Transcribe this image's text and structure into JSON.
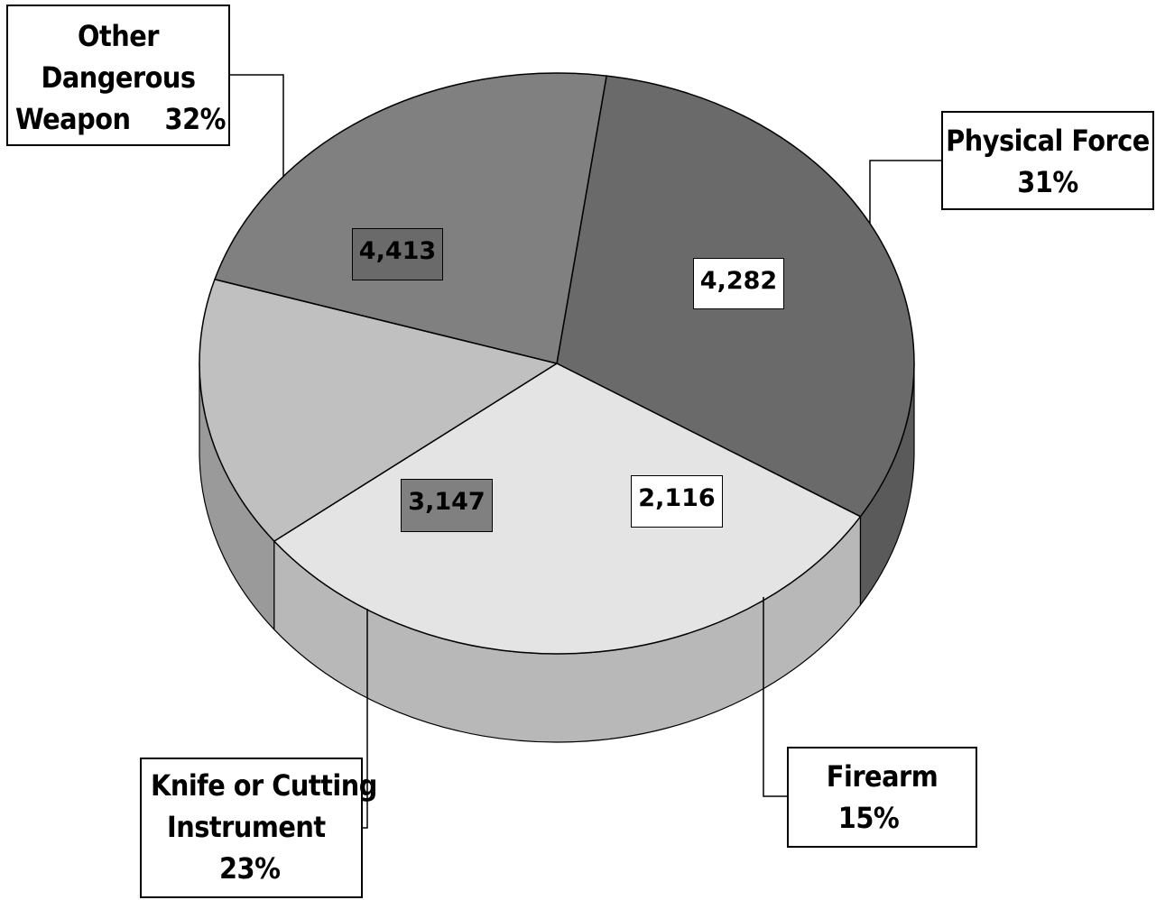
{
  "chart_data": {
    "type": "pie",
    "title": "",
    "slices": [
      {
        "label_lines": [
          "Other",
          "Dangerous",
          "Weapon    32%"
        ],
        "value": 4413,
        "value_label": "4,413",
        "percent": 32,
        "color": "#6a6a6a",
        "side_color": "#5a5a5a"
      },
      {
        "label_lines": [
          "Physical Force",
          "31%"
        ],
        "value": 4282,
        "value_label": "4,282",
        "percent": 31,
        "color": "#e4e4e4",
        "side_color": "#b8b8b8"
      },
      {
        "label_lines": [
          "Firearm",
          "15%"
        ],
        "value": 2116,
        "value_label": "2,116",
        "percent": 15,
        "color": "#c0c0c0",
        "side_color": "#9a9a9a"
      },
      {
        "label_lines": [
          "Knife or Cutting",
          "Instrument",
          "23%"
        ],
        "value": 3147,
        "value_label": "3,147",
        "percent": 23,
        "color": "#808080",
        "side_color": "#5c5c5c"
      }
    ]
  }
}
